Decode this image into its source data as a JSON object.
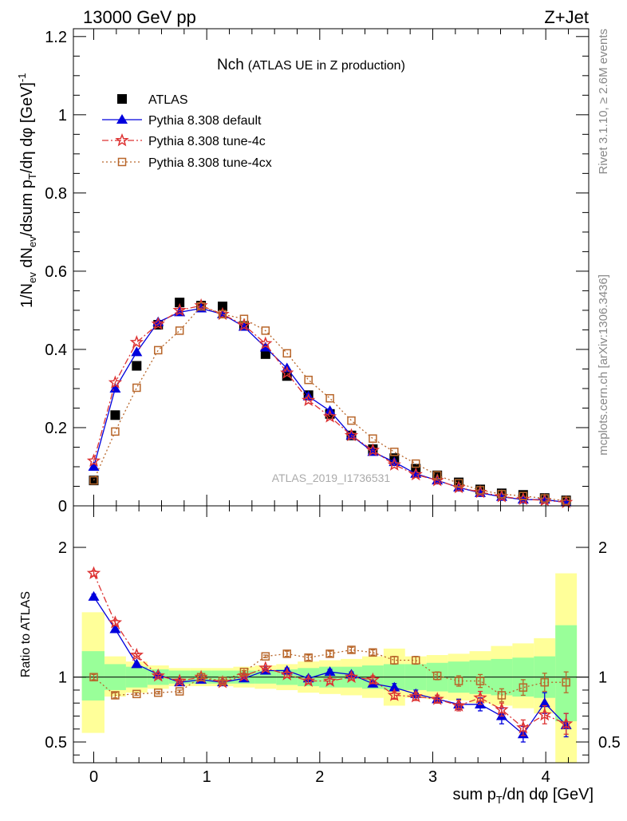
{
  "header": {
    "left": "13000 GeV pp",
    "right": "Z+Jet"
  },
  "side_labels": {
    "rivet": "Rivet 3.1.10, ≥ 2.6M events",
    "mcplots": "mcplots.cern.ch [arXiv:1306.3436]"
  },
  "colors": {
    "atlas": "#000000",
    "default": "#0000dd",
    "tune4c": "#dd3333",
    "tune4cx": "#b8662a",
    "band_inner": "#99ff99",
    "band_outer": "#ffff99"
  },
  "chart_data": [
    {
      "type": "line",
      "title_main": "Nch",
      "title_sub": "(ATLAS UE in Z production)",
      "watermark": "ATLAS_2019_I1736531",
      "ylabel": "1/N_ev dN_ev/dsum p_T/dη dφ [GeV]^-1",
      "xlim": [
        -0.18,
        4.38
      ],
      "ylim": [
        0,
        1.22
      ],
      "yticks": [
        0,
        0.2,
        0.4,
        0.6,
        0.8,
        1,
        1.2
      ],
      "ytick_labels": [
        "0",
        "0.2",
        "0.4",
        "0.6",
        "0.8",
        "1",
        "1.2"
      ],
      "legend_position": "top-left",
      "x": [
        0,
        0.19,
        0.38,
        0.57,
        0.76,
        0.95,
        1.14,
        1.33,
        1.52,
        1.71,
        1.9,
        2.09,
        2.28,
        2.47,
        2.66,
        2.85,
        3.04,
        3.23,
        3.42,
        3.61,
        3.8,
        3.99,
        4.18
      ],
      "series": [
        {
          "name": "ATLAS",
          "marker": "square",
          "values": [
            0.065,
            0.232,
            0.358,
            0.463,
            0.52,
            0.512,
            0.51,
            0.46,
            0.388,
            0.332,
            0.283,
            0.235,
            0.18,
            0.145,
            0.122,
            0.095,
            0.078,
            0.06,
            0.042,
            0.032,
            0.028,
            0.02,
            0.014
          ]
        },
        {
          "name": "Pythia 8.308 default",
          "marker": "triangle",
          "values": [
            0.1,
            0.3,
            0.393,
            0.47,
            0.495,
            0.505,
            0.49,
            0.458,
            0.405,
            0.352,
            0.28,
            0.243,
            0.18,
            0.138,
            0.112,
            0.082,
            0.065,
            0.047,
            0.033,
            0.023,
            0.016,
            0.016,
            0.009
          ]
        },
        {
          "name": "Pythia 8.308 tune-4c",
          "marker": "star",
          "values": [
            0.115,
            0.315,
            0.418,
            0.465,
            0.5,
            0.512,
            0.49,
            0.462,
            0.415,
            0.34,
            0.27,
            0.228,
            0.18,
            0.142,
            0.105,
            0.08,
            0.065,
            0.047,
            0.035,
            0.024,
            0.017,
            0.014,
            0.009
          ]
        },
        {
          "name": "Pythia 8.308 tune-4cx",
          "marker": "open-square",
          "values": [
            0.065,
            0.19,
            0.302,
            0.398,
            0.448,
            0.51,
            0.49,
            0.478,
            0.448,
            0.39,
            0.322,
            0.275,
            0.218,
            0.172,
            0.138,
            0.108,
            0.078,
            0.058,
            0.04,
            0.03,
            0.025,
            0.019,
            0.013
          ]
        }
      ]
    },
    {
      "type": "line",
      "ylabel": "Ratio to ATLAS",
      "xlabel": "sum p_T/dη dφ [GeV]",
      "xlim": [
        -0.18,
        4.38
      ],
      "ylim": [
        0.34,
        2.32
      ],
      "yticks": [
        0.5,
        1,
        2
      ],
      "ytick_labels": [
        "0.5",
        "1",
        "2"
      ],
      "xticks": [
        0,
        1,
        2,
        3,
        4
      ],
      "xtick_labels": [
        "0",
        "1",
        "2",
        "3",
        "4"
      ],
      "bin_edges": [
        -0.105,
        0.095,
        0.285,
        0.475,
        0.665,
        0.855,
        1.045,
        1.235,
        1.425,
        1.615,
        1.805,
        1.995,
        2.185,
        2.375,
        2.565,
        2.755,
        2.945,
        3.135,
        3.325,
        3.515,
        3.705,
        3.895,
        4.085,
        4.275
      ],
      "band_inner": [
        [
          0.82,
          1.2
        ],
        [
          0.9,
          1.1
        ],
        [
          0.92,
          1.08
        ],
        [
          0.94,
          1.06
        ],
        [
          0.95,
          1.05
        ],
        [
          0.95,
          1.05
        ],
        [
          0.95,
          1.05
        ],
        [
          0.95,
          1.05
        ],
        [
          0.95,
          1.05
        ],
        [
          0.94,
          1.06
        ],
        [
          0.93,
          1.07
        ],
        [
          0.92,
          1.08
        ],
        [
          0.92,
          1.08
        ],
        [
          0.91,
          1.09
        ],
        [
          0.9,
          1.1
        ],
        [
          0.9,
          1.1
        ],
        [
          0.89,
          1.11
        ],
        [
          0.88,
          1.12
        ],
        [
          0.87,
          1.13
        ],
        [
          0.86,
          1.14
        ],
        [
          0.85,
          1.15
        ],
        [
          0.84,
          1.16
        ],
        [
          0.66,
          1.4
        ]
      ],
      "band_outer": [
        [
          0.57,
          1.5
        ],
        [
          0.85,
          1.16
        ],
        [
          0.88,
          1.12
        ],
        [
          0.91,
          1.09
        ],
        [
          0.93,
          1.07
        ],
        [
          0.93,
          1.07
        ],
        [
          0.93,
          1.07
        ],
        [
          0.92,
          1.08
        ],
        [
          0.91,
          1.09
        ],
        [
          0.9,
          1.1
        ],
        [
          0.88,
          1.12
        ],
        [
          0.87,
          1.13
        ],
        [
          0.86,
          1.14
        ],
        [
          0.84,
          1.16
        ],
        [
          0.78,
          1.22
        ],
        [
          0.84,
          1.16
        ],
        [
          0.83,
          1.17
        ],
        [
          0.82,
          1.18
        ],
        [
          0.8,
          1.2
        ],
        [
          0.78,
          1.24
        ],
        [
          0.76,
          1.26
        ],
        [
          0.72,
          1.3
        ],
        [
          0.34,
          1.8
        ]
      ],
      "x": [
        0,
        0.19,
        0.38,
        0.57,
        0.76,
        0.95,
        1.14,
        1.33,
        1.52,
        1.71,
        1.9,
        2.09,
        2.28,
        2.47,
        2.66,
        2.85,
        3.04,
        3.23,
        3.42,
        3.61,
        3.8,
        3.99,
        4.18
      ],
      "series": [
        {
          "name": "Pythia 8.308 default",
          "marker": "triangle",
          "values": [
            1.62,
            1.37,
            1.1,
            1.02,
            0.96,
            0.98,
            0.96,
            0.99,
            1.05,
            1.05,
            0.99,
            1.04,
            1.02,
            0.95,
            0.92,
            0.87,
            0.83,
            0.79,
            0.79,
            0.7,
            0.56,
            0.8,
            0.63
          ],
          "err": [
            0.02,
            0.02,
            0.01,
            0.01,
            0.01,
            0.01,
            0.01,
            0.01,
            0.01,
            0.02,
            0.02,
            0.02,
            0.02,
            0.02,
            0.03,
            0.03,
            0.03,
            0.04,
            0.05,
            0.06,
            0.06,
            0.08,
            0.09
          ]
        },
        {
          "name": "Pythia 8.308 tune-4c",
          "marker": "star",
          "values": [
            1.8,
            1.42,
            1.17,
            1.01,
            0.97,
            1.0,
            0.96,
            1.01,
            1.07,
            1.02,
            0.97,
            0.97,
            1.0,
            0.98,
            0.86,
            0.85,
            0.83,
            0.78,
            0.84,
            0.75,
            0.61,
            0.71,
            0.64
          ],
          "err": [
            0.02,
            0.02,
            0.01,
            0.01,
            0.01,
            0.01,
            0.01,
            0.01,
            0.01,
            0.02,
            0.02,
            0.02,
            0.02,
            0.03,
            0.03,
            0.03,
            0.03,
            0.04,
            0.05,
            0.05,
            0.06,
            0.07,
            0.08
          ]
        },
        {
          "name": "Pythia 8.308 tune-4cx",
          "marker": "open-square",
          "values": [
            1.0,
            0.86,
            0.87,
            0.88,
            0.89,
            1.0,
            0.97,
            1.04,
            1.16,
            1.18,
            1.15,
            1.18,
            1.21,
            1.19,
            1.13,
            1.13,
            1.01,
            0.97,
            0.97,
            0.86,
            0.92,
            0.96,
            0.96
          ],
          "err": [
            0.02,
            0.02,
            0.01,
            0.01,
            0.01,
            0.01,
            0.01,
            0.01,
            0.01,
            0.02,
            0.02,
            0.02,
            0.02,
            0.02,
            0.03,
            0.03,
            0.03,
            0.04,
            0.05,
            0.05,
            0.06,
            0.07,
            0.08
          ]
        }
      ]
    }
  ]
}
